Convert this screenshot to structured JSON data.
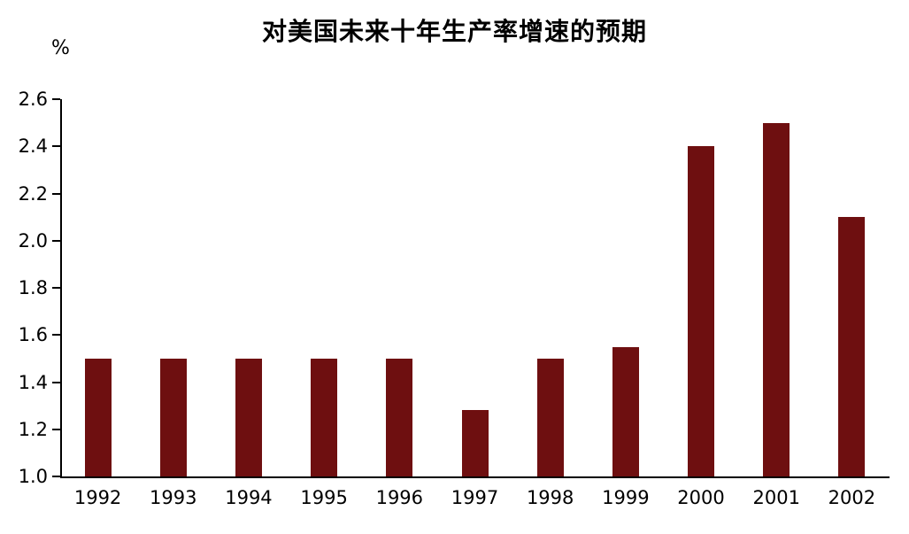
{
  "chart_data": {
    "type": "bar",
    "title": "对美国未来十年生产率增速的预期",
    "ylabel": "%",
    "xlabel": "",
    "categories": [
      "1992",
      "1993",
      "1994",
      "1995",
      "1996",
      "1997",
      "1998",
      "1999",
      "2000",
      "2001",
      "2002"
    ],
    "values": [
      1.5,
      1.5,
      1.5,
      1.5,
      1.5,
      1.28,
      1.5,
      1.55,
      2.4,
      2.5,
      2.1
    ],
    "ylim": [
      1.0,
      2.6
    ],
    "ytick_step": 0.2,
    "ytick_labels": [
      "1.0",
      "1.2",
      "1.4",
      "1.6",
      "1.8",
      "2.0",
      "2.2",
      "2.4",
      "2.6"
    ],
    "bar_color": "#6E0F10",
    "axis_color": "#000000",
    "grid": false,
    "legend": "none"
  }
}
